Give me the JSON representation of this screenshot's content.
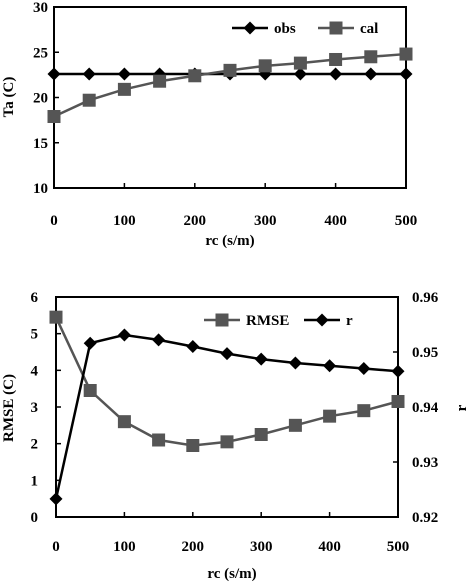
{
  "chart_data": [
    {
      "type": "line",
      "xlabel": "rc (s/m)",
      "ylabel": "Ta (C)",
      "xlim": [
        0,
        500
      ],
      "ylim": [
        10,
        30
      ],
      "xticks": [
        "0",
        "100",
        "200",
        "300",
        "400",
        "500"
      ],
      "yticks": [
        "10",
        "15",
        "20",
        "25",
        "30"
      ],
      "legend": "top-right",
      "x": [
        0,
        50,
        100,
        150,
        200,
        250,
        300,
        350,
        400,
        450,
        500
      ],
      "series": [
        {
          "name": "obs",
          "marker": "diamond",
          "color": "#000000",
          "values": [
            22.6,
            22.6,
            22.6,
            22.6,
            22.6,
            22.6,
            22.6,
            22.6,
            22.6,
            22.6,
            22.6
          ]
        },
        {
          "name": "cal",
          "marker": "square",
          "color": "#555555",
          "values": [
            17.9,
            19.7,
            20.9,
            21.8,
            22.4,
            23.0,
            23.5,
            23.8,
            24.2,
            24.5,
            24.8
          ]
        }
      ]
    },
    {
      "type": "line",
      "xlabel": "rc (s/m)",
      "ylabel": "RMSE (C)",
      "y2label": "r",
      "xlim": [
        0,
        500
      ],
      "ylim": [
        0,
        6
      ],
      "y2lim": [
        0.92,
        0.96
      ],
      "xticks": [
        "0",
        "100",
        "200",
        "300",
        "400",
        "500"
      ],
      "yticks": [
        "0",
        "1",
        "2",
        "3",
        "4",
        "5",
        "6"
      ],
      "y2ticks": [
        "0.92",
        "0.93",
        "0.94",
        "0.95",
        "0.96"
      ],
      "legend": "top-right",
      "x": [
        0,
        50,
        100,
        150,
        200,
        250,
        300,
        350,
        400,
        450,
        500
      ],
      "series": [
        {
          "name": "RMSE",
          "axis": "left",
          "marker": "square",
          "color": "#555555",
          "values": [
            5.45,
            3.45,
            2.6,
            2.1,
            1.95,
            2.05,
            2.25,
            2.5,
            2.75,
            2.9,
            3.15
          ]
        },
        {
          "name": "r",
          "axis": "right",
          "marker": "diamond",
          "color": "#000000",
          "values": [
            0.9233,
            0.9516,
            0.9531,
            0.9522,
            0.951,
            0.9497,
            0.9487,
            0.948,
            0.9475,
            0.947,
            0.9465
          ]
        }
      ]
    }
  ]
}
